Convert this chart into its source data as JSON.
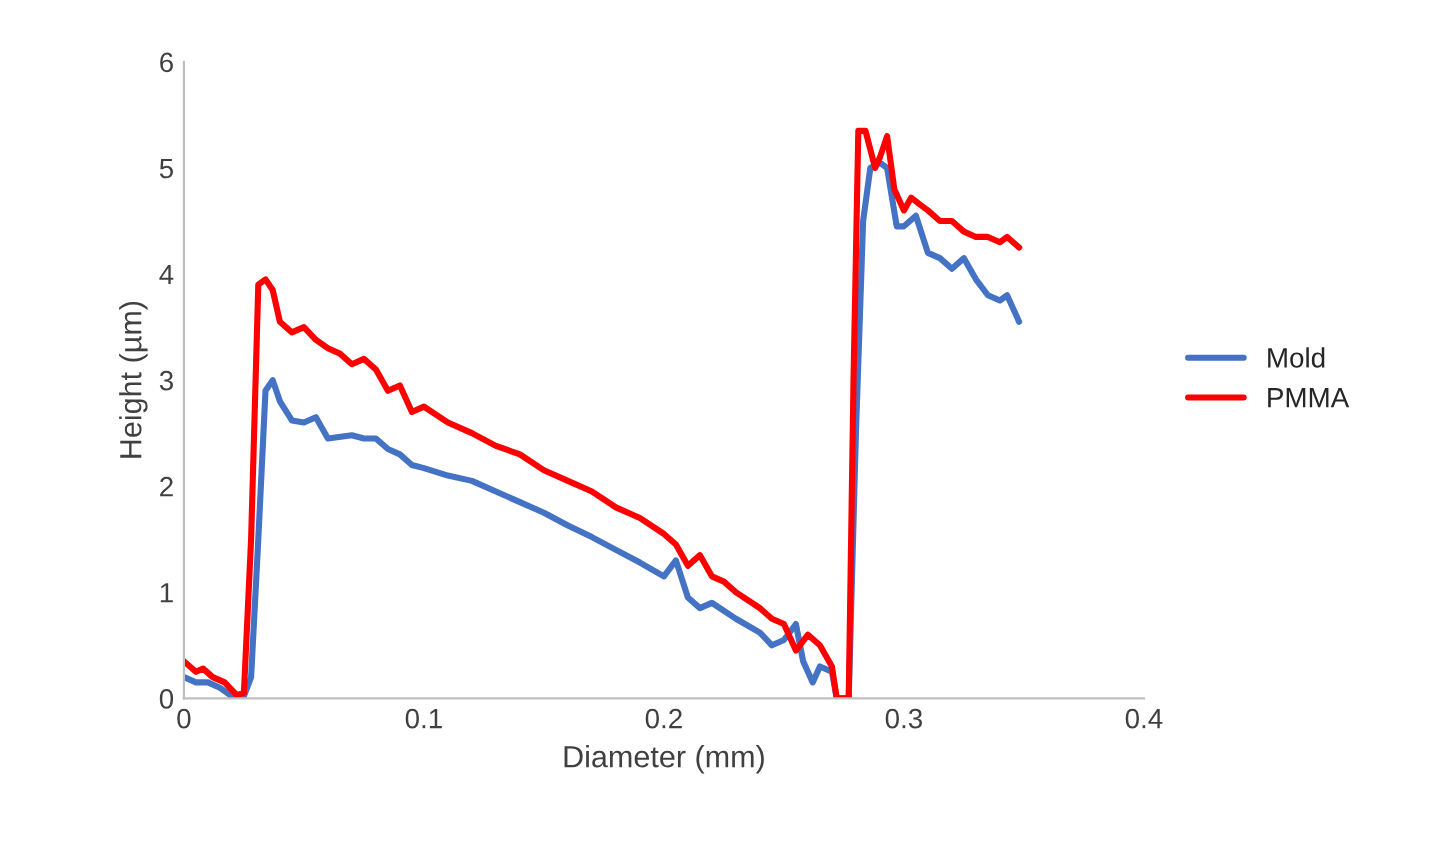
{
  "chart_data": {
    "type": "line",
    "xlabel": "Diameter (mm)",
    "ylabel": "Height (µm)",
    "xlim": [
      0,
      0.4
    ],
    "xticks": [
      0,
      0.1,
      0.2,
      0.3,
      0.4
    ],
    "ylim": [
      0,
      6
    ],
    "yticks": [
      0,
      1,
      2,
      3,
      4,
      5,
      6
    ],
    "grid": false,
    "legend": "right",
    "marker": "none",
    "line_style": "solid",
    "series": [
      {
        "name": "Mold",
        "color": "#4472c4",
        "x": [
          0,
          0.005,
          0.01,
          0.015,
          0.02,
          0.025,
          0.028,
          0.031,
          0.034,
          0.037,
          0.04,
          0.045,
          0.05,
          0.055,
          0.06,
          0.07,
          0.075,
          0.08,
          0.085,
          0.09,
          0.095,
          0.1,
          0.11,
          0.12,
          0.13,
          0.14,
          0.15,
          0.16,
          0.17,
          0.18,
          0.19,
          0.2,
          0.205,
          0.21,
          0.215,
          0.22,
          0.23,
          0.24,
          0.245,
          0.25,
          0.255,
          0.258,
          0.262,
          0.265,
          0.27,
          0.272,
          0.277,
          0.28,
          0.283,
          0.286,
          0.29,
          0.293,
          0.297,
          0.3,
          0.305,
          0.31,
          0.315,
          0.32,
          0.325,
          0.33,
          0.335,
          0.34,
          0.343,
          0.348
        ],
        "values": [
          0.2,
          0.15,
          0.15,
          0.1,
          0.02,
          0.02,
          0.2,
          1.5,
          2.9,
          3.0,
          2.8,
          2.62,
          2.6,
          2.65,
          2.45,
          2.48,
          2.45,
          2.45,
          2.35,
          2.3,
          2.2,
          2.17,
          2.1,
          2.05,
          1.95,
          1.85,
          1.75,
          1.63,
          1.52,
          1.4,
          1.28,
          1.15,
          1.3,
          0.95,
          0.85,
          0.9,
          0.75,
          0.62,
          0.5,
          0.55,
          0.7,
          0.35,
          0.15,
          0.3,
          0.25,
          0,
          0,
          2.5,
          4.5,
          5.0,
          5.05,
          5.0,
          4.45,
          4.45,
          4.55,
          4.2,
          4.15,
          4.05,
          4.15,
          3.95,
          3.8,
          3.75,
          3.8,
          3.55
        ]
      },
      {
        "name": "PMMA",
        "color": "#ff0000",
        "x": [
          0,
          0.005,
          0.008,
          0.012,
          0.017,
          0.022,
          0.025,
          0.028,
          0.031,
          0.034,
          0.037,
          0.04,
          0.045,
          0.05,
          0.055,
          0.06,
          0.065,
          0.07,
          0.075,
          0.08,
          0.085,
          0.09,
          0.095,
          0.1,
          0.11,
          0.12,
          0.13,
          0.14,
          0.15,
          0.16,
          0.17,
          0.18,
          0.19,
          0.2,
          0.205,
          0.21,
          0.215,
          0.22,
          0.225,
          0.23,
          0.24,
          0.245,
          0.25,
          0.255,
          0.26,
          0.265,
          0.27,
          0.272,
          0.277,
          0.279,
          0.281,
          0.284,
          0.288,
          0.29,
          0.293,
          0.296,
          0.3,
          0.303,
          0.307,
          0.31,
          0.315,
          0.32,
          0.325,
          0.33,
          0.335,
          0.34,
          0.343,
          0.348
        ],
        "values": [
          0.35,
          0.25,
          0.28,
          0.2,
          0.15,
          0.03,
          0.05,
          1.5,
          3.9,
          3.95,
          3.85,
          3.55,
          3.45,
          3.5,
          3.38,
          3.3,
          3.25,
          3.15,
          3.2,
          3.1,
          2.9,
          2.95,
          2.7,
          2.75,
          2.6,
          2.5,
          2.38,
          2.3,
          2.15,
          2.05,
          1.95,
          1.8,
          1.7,
          1.55,
          1.45,
          1.25,
          1.35,
          1.15,
          1.1,
          1.0,
          0.85,
          0.75,
          0.7,
          0.45,
          0.6,
          0.5,
          0.3,
          0,
          0,
          3.0,
          5.35,
          5.35,
          5.0,
          5.1,
          5.3,
          4.8,
          4.6,
          4.72,
          4.65,
          4.6,
          4.5,
          4.5,
          4.4,
          4.35,
          4.35,
          4.3,
          4.35,
          4.25
        ]
      }
    ]
  }
}
